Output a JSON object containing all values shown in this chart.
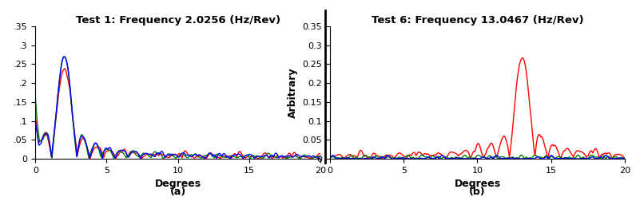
{
  "subplot_a": {
    "title": "Test 1: Frequency 2.0256 (Hz/Rev)",
    "xlabel": "Degrees",
    "ylabel": "",
    "xlim": [
      0,
      20
    ],
    "ylim": [
      0,
      0.35
    ],
    "yticks": [
      0,
      0.05,
      0.1,
      0.15,
      0.2,
      0.25,
      0.3,
      0.35
    ],
    "ytick_labels": [
      "0",
      ".05",
      ".1",
      ".15",
      ".2",
      ".25",
      ".3",
      ".35"
    ],
    "freq": 2.0256,
    "label": "(a)"
  },
  "subplot_b": {
    "title": "Test 6: Frequency 13.0467 (Hz/Rev)",
    "xlabel": "Degrees",
    "ylabel": "Arbitrary",
    "xlim": [
      0,
      20
    ],
    "ylim": [
      0,
      0.35
    ],
    "yticks": [
      0,
      0.05,
      0.1,
      0.15,
      0.2,
      0.25,
      0.3,
      0.35
    ],
    "ytick_labels": [
      "0",
      "0.05",
      "0.1",
      "0.15",
      "0.2",
      "0.25",
      "0.3",
      "0.35"
    ],
    "freq": 13.0467,
    "label": "(b)"
  },
  "colors": {
    "red": "#ff0000",
    "green": "#008000",
    "blue": "#0000ff"
  },
  "divider_color": "#000000",
  "background_color": "#ffffff",
  "title_fontsize": 9.5,
  "label_fontsize": 9,
  "tick_fontsize": 8
}
